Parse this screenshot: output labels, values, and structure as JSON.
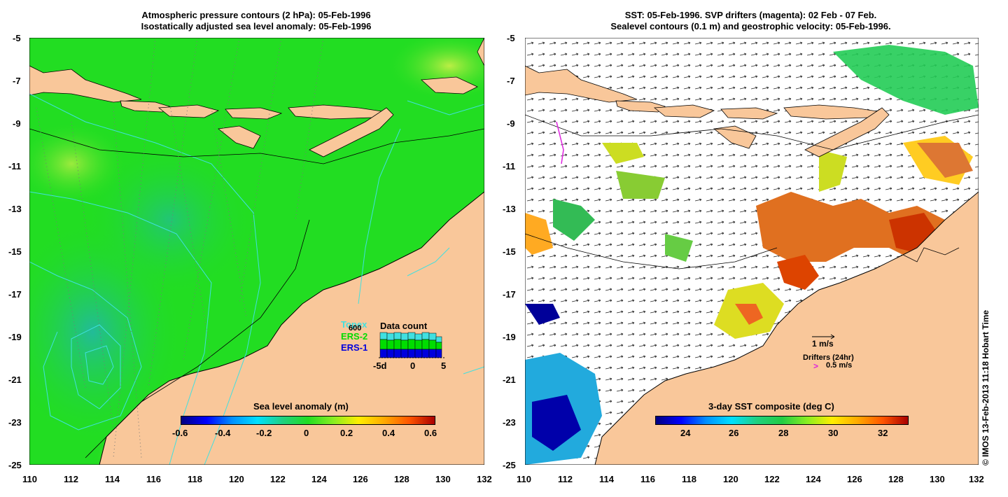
{
  "left_panel": {
    "title_line1": "Atmospheric pressure contours (2 hPa): 05-Feb-1996",
    "title_line2": "Isostatically adjusted sea level anomaly: 05-Feb-1996",
    "lat_ticks": [
      "-5",
      "-7",
      "-9",
      "-11",
      "-13",
      "-15",
      "-17",
      "-19",
      "-21",
      "-23",
      "-25"
    ],
    "lon_ticks": [
      "110",
      "112",
      "114",
      "116",
      "118",
      "120",
      "122",
      "124",
      "126",
      "128",
      "130",
      "132"
    ],
    "colorbar": {
      "label": "Sea level anomaly (m)",
      "ticks": [
        "-0.6",
        "-0.4",
        "-0.2",
        "0",
        "0.2",
        "0.4",
        "0.6"
      ]
    },
    "data_count": {
      "title": "Data count",
      "max_label": "600",
      "series": [
        "Topex",
        "ERS-2",
        "ERS-1"
      ],
      "series_colors": [
        "#40e0e0",
        "#00dd00",
        "#0000dd"
      ],
      "x_ticks": [
        "-5d",
        "0",
        "5"
      ]
    }
  },
  "right_panel": {
    "title_line1": "SST: 05-Feb-1996. SVP drifters (magenta): 02 Feb - 07 Feb.",
    "title_line2": "Sealevel contours (0.1 m) and geostrophic velocity: 05-Feb-1996.",
    "lat_ticks": [
      "-5",
      "-7",
      "-9",
      "-11",
      "-13",
      "-15",
      "-17",
      "-19",
      "-21",
      "-23",
      "-25"
    ],
    "lon_ticks": [
      "110",
      "112",
      "114",
      "116",
      "118",
      "120",
      "122",
      "124",
      "126",
      "128",
      "130",
      "132"
    ],
    "colorbar": {
      "label": "3-day SST composite (deg C)",
      "ticks": [
        "24",
        "26",
        "28",
        "30",
        "32"
      ]
    },
    "velocity_scale": "1 m/s",
    "drifters_label": "Drifters (24hr)",
    "drifter_scale": "0.5 m/s"
  },
  "copyright": "© IMOS 13-Feb-2013 11:18 Hobart Time",
  "colors": {
    "land": "#f9c79a",
    "ocean_green": "#22dd22",
    "sla_high": "#aaee33",
    "sla_low": "#33cc88"
  }
}
